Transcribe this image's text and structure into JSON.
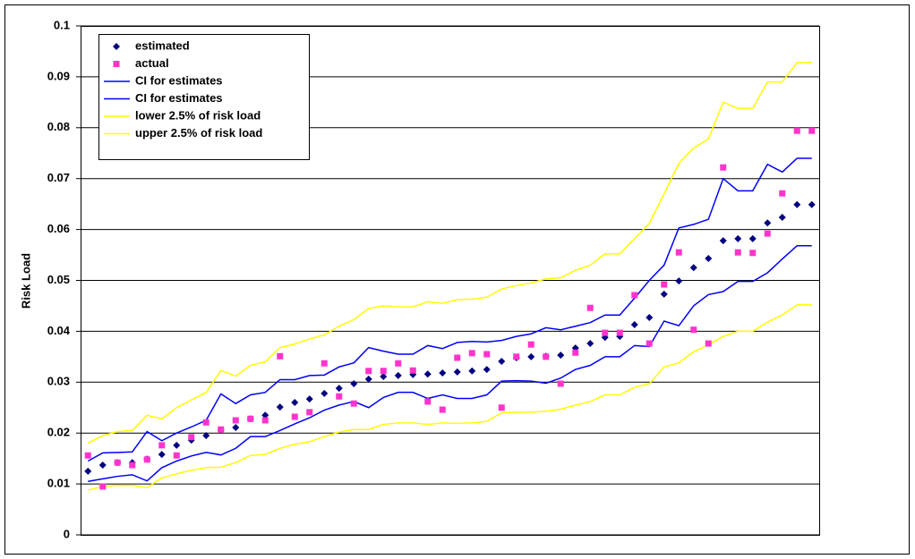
{
  "chart_data": {
    "type": "line",
    "y_label": "Risk Load",
    "ylim": [
      0,
      0.1
    ],
    "yticks": [
      0,
      0.01,
      0.02,
      0.03,
      0.04,
      0.05,
      0.06,
      0.07,
      0.08,
      0.09,
      0.1
    ],
    "grid": true,
    "legend": "top-left",
    "series": [
      {
        "name": "estimated",
        "color": "#000080",
        "marker": "diamond",
        "values": [
          0.0125,
          0.0137,
          0.0142,
          0.0142,
          0.0149,
          0.0158,
          0.0176,
          0.0186,
          0.0195,
          0.0206,
          0.0211,
          0.0228,
          0.0235,
          0.0251,
          0.026,
          0.0267,
          0.0278,
          0.0288,
          0.0297,
          0.0306,
          0.0311,
          0.0313,
          0.0315,
          0.0316,
          0.0318,
          0.032,
          0.0322,
          0.0325,
          0.0341,
          0.0348,
          0.035,
          0.0351,
          0.0353,
          0.0367,
          0.0376,
          0.0388,
          0.039,
          0.0413,
          0.0427,
          0.0473,
          0.0499,
          0.0525,
          0.0543,
          0.0578,
          0.0582,
          0.0582,
          0.0613,
          0.0624,
          0.0649,
          0.0649
        ]
      },
      {
        "name": "actual",
        "color": "#ff33cc",
        "marker": "square",
        "values": [
          0.0156,
          0.0095,
          0.0142,
          0.0137,
          0.0148,
          0.0176,
          0.0156,
          0.0192,
          0.0221,
          0.0207,
          0.0225,
          0.0228,
          0.0225,
          0.0351,
          0.0232,
          0.0241,
          0.0337,
          0.0272,
          0.0258,
          0.0322,
          0.0322,
          0.0337,
          0.0323,
          0.0262,
          0.0246,
          0.0348,
          0.0357,
          0.0355,
          0.025,
          0.035,
          0.0374,
          0.035,
          0.0297,
          0.0358,
          0.0446,
          0.0397,
          0.0397,
          0.0471,
          0.0376,
          0.0492,
          0.0555,
          0.0403,
          0.0376,
          0.0722,
          0.0555,
          0.0554,
          0.0592,
          0.0671,
          0.0794,
          0.0794
        ]
      },
      {
        "name": "CI for estimates",
        "color": "#0000ff",
        "values": [
          0.0145,
          0.0161,
          0.0162,
          0.0163,
          0.0203,
          0.0185,
          0.02,
          0.0212,
          0.0225,
          0.0277,
          0.0258,
          0.0275,
          0.028,
          0.0305,
          0.0305,
          0.0313,
          0.0314,
          0.033,
          0.0338,
          0.0368,
          0.0361,
          0.0355,
          0.0355,
          0.0372,
          0.0366,
          0.0378,
          0.038,
          0.0379,
          0.0382,
          0.039,
          0.0395,
          0.0407,
          0.0403,
          0.041,
          0.0417,
          0.0432,
          0.0432,
          0.0465,
          0.05,
          0.053,
          0.0603,
          0.061,
          0.062,
          0.07,
          0.0676,
          0.0676,
          0.0728,
          0.0713,
          0.074,
          0.074
        ]
      },
      {
        "name": "CI for estimates",
        "color": "#0000ff",
        "values": [
          0.0105,
          0.011,
          0.0115,
          0.0118,
          0.0106,
          0.0132,
          0.0145,
          0.0155,
          0.0162,
          0.0157,
          0.017,
          0.0193,
          0.0193,
          0.0205,
          0.0218,
          0.023,
          0.0245,
          0.0255,
          0.0262,
          0.025,
          0.027,
          0.028,
          0.028,
          0.0268,
          0.0275,
          0.0268,
          0.0268,
          0.0275,
          0.0302,
          0.0303,
          0.0302,
          0.0298,
          0.0308,
          0.0325,
          0.0333,
          0.035,
          0.035,
          0.0372,
          0.037,
          0.042,
          0.0411,
          0.045,
          0.0472,
          0.0478,
          0.0498,
          0.0498,
          0.0515,
          0.0542,
          0.0568,
          0.0568
        ]
      },
      {
        "name": "lower 2.5% of risk load",
        "color": "#ffff00",
        "values": [
          0.0088,
          0.0095,
          0.0097,
          0.0097,
          0.0093,
          0.0112,
          0.012,
          0.0127,
          0.0132,
          0.0133,
          0.0142,
          0.0156,
          0.0158,
          0.017,
          0.0178,
          0.0183,
          0.0193,
          0.0202,
          0.0207,
          0.0207,
          0.0217,
          0.022,
          0.022,
          0.0217,
          0.022,
          0.0219,
          0.022,
          0.0223,
          0.024,
          0.0241,
          0.0241,
          0.0243,
          0.0247,
          0.0255,
          0.0262,
          0.0275,
          0.0275,
          0.029,
          0.0297,
          0.033,
          0.0338,
          0.036,
          0.0373,
          0.039,
          0.04,
          0.04,
          0.0418,
          0.0432,
          0.0452,
          0.0452
        ]
      },
      {
        "name": "upper 2.5% of risk load",
        "color": "#ffff00",
        "values": [
          0.018,
          0.0195,
          0.0203,
          0.0205,
          0.0235,
          0.0228,
          0.025,
          0.0265,
          0.028,
          0.0323,
          0.0312,
          0.0333,
          0.034,
          0.0368,
          0.0375,
          0.0385,
          0.0393,
          0.041,
          0.0423,
          0.0445,
          0.045,
          0.0448,
          0.0448,
          0.0458,
          0.0455,
          0.0462,
          0.0463,
          0.0467,
          0.0483,
          0.049,
          0.0495,
          0.0503,
          0.0505,
          0.052,
          0.053,
          0.0552,
          0.0552,
          0.0582,
          0.0612,
          0.067,
          0.073,
          0.076,
          0.0778,
          0.085,
          0.0838,
          0.0838,
          0.089,
          0.089,
          0.0928,
          0.0928
        ]
      }
    ]
  }
}
